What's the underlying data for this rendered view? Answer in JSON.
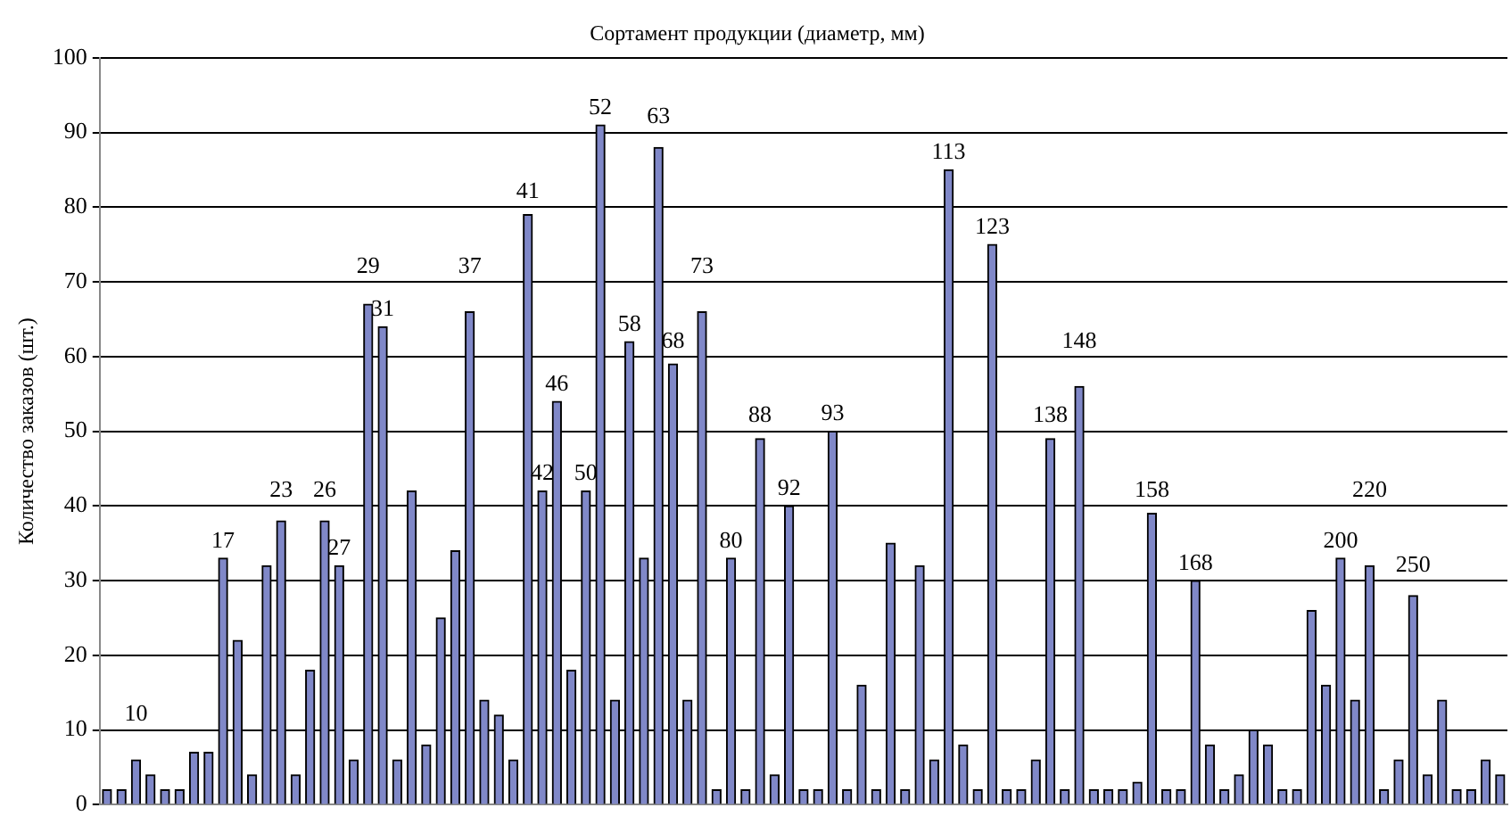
{
  "chart_data": {
    "type": "bar",
    "title": "Сортамент продукции (диаметр, мм)",
    "ylabel": "Количество заказов (шт.)",
    "categories": [
      null,
      null,
      "10",
      null,
      null,
      null,
      null,
      null,
      "17",
      null,
      null,
      null,
      "23",
      null,
      null,
      "26",
      "27",
      null,
      "29",
      "31",
      null,
      null,
      null,
      null,
      null,
      "37",
      null,
      null,
      null,
      "41",
      "42",
      "46",
      null,
      "50",
      "52",
      null,
      "58",
      null,
      "63",
      "68",
      null,
      "73",
      null,
      "80",
      null,
      "88",
      null,
      "92",
      null,
      null,
      "93",
      null,
      null,
      null,
      null,
      null,
      null,
      null,
      "113",
      null,
      null,
      "123",
      null,
      null,
      null,
      "138",
      null,
      "148",
      null,
      null,
      null,
      null,
      "158",
      null,
      null,
      "168",
      null,
      null,
      null,
      null,
      null,
      null,
      null,
      null,
      null,
      "200",
      null,
      "220",
      null,
      null,
      "250",
      null,
      null,
      null,
      null,
      null,
      null
    ],
    "values": [
      2,
      2,
      6,
      4,
      2,
      2,
      7,
      7,
      33,
      22,
      4,
      32,
      38,
      4,
      18,
      38,
      32,
      6,
      67,
      64,
      6,
      42,
      8,
      25,
      34,
      66,
      14,
      12,
      6,
      79,
      42,
      54,
      18,
      42,
      91,
      14,
      62,
      33,
      88,
      59,
      14,
      66,
      2,
      33,
      2,
      49,
      4,
      40,
      2,
      2,
      50,
      2,
      16,
      2,
      35,
      2,
      32,
      6,
      85,
      8,
      2,
      75,
      2,
      2,
      6,
      49,
      2,
      56,
      2,
      2,
      2,
      3,
      39,
      2,
      2,
      30,
      8,
      2,
      4,
      10,
      8,
      2,
      2,
      26,
      16,
      33,
      14,
      32,
      2,
      6,
      28,
      4,
      14,
      2,
      2,
      6,
      4
    ],
    "color": "#8088c8",
    "ylim": [
      0,
      100
    ],
    "yticks": [
      0,
      10,
      20,
      30,
      40,
      50,
      60,
      70,
      80,
      90,
      100
    ],
    "grid": "y"
  }
}
